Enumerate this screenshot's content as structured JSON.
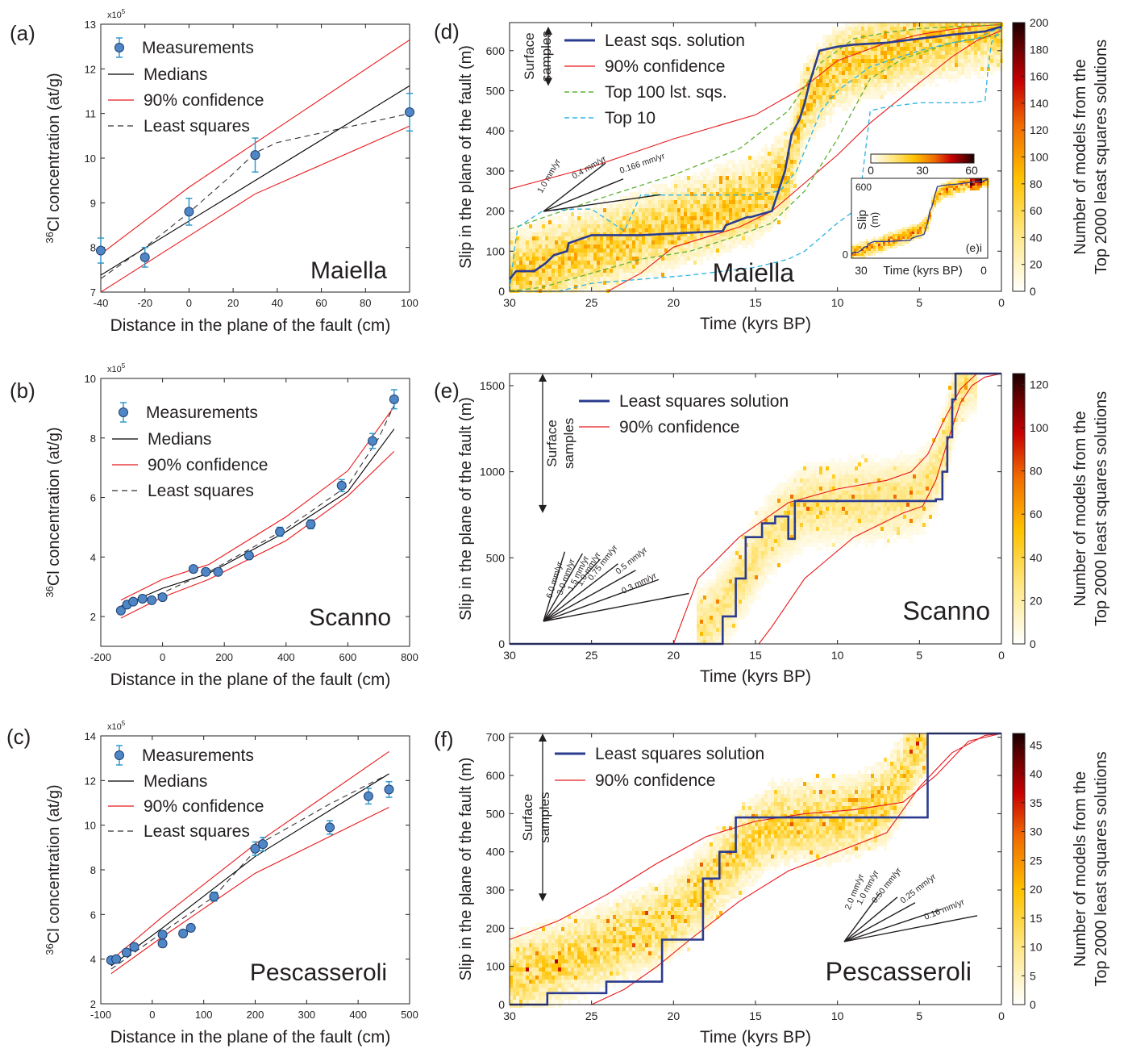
{
  "colors": {
    "measurement": "#4f86c6",
    "measurement_edge": "#1f3f6f",
    "errorbar": "#3399cc",
    "median": "#000000",
    "confidence": "#e8191c",
    "least_squares_line": "#2b3b8f",
    "top100": "#5fb132",
    "top10": "#2ab3e3"
  },
  "chart_data": [
    {
      "id": "a",
      "panel_label": "(a)",
      "type": "scatter",
      "site": "Maiella",
      "xlabel": "Distance in the plane of the fault (cm)",
      "ylabel": "36Cl concentration (at/g)",
      "y_multiplier": "x10",
      "y_multiplier_exp": "5",
      "xlim": [
        -40,
        100
      ],
      "ylim": [
        7,
        13
      ],
      "xticks": [
        -40,
        -20,
        0,
        20,
        40,
        60,
        80,
        100
      ],
      "yticks": [
        7,
        8,
        9,
        10,
        11,
        12,
        13
      ],
      "legend": [
        "Measurements",
        "Medians",
        "90% confidence",
        "Least squares"
      ],
      "legend_position": "top-left",
      "measurements": {
        "x": [
          -40,
          -20,
          0,
          30,
          100
        ],
        "y": [
          7.93,
          7.78,
          8.8,
          10.07,
          11.03
        ],
        "err": [
          0.28,
          0.22,
          0.3,
          0.38,
          0.42
        ]
      },
      "medians": {
        "x": [
          -40,
          100
        ],
        "y": [
          7.38,
          11.62
        ]
      },
      "conf_upper": {
        "x": [
          -40,
          0,
          100
        ],
        "y": [
          7.85,
          9.35,
          12.65
        ]
      },
      "conf_lower": {
        "x": [
          -40,
          30,
          100
        ],
        "y": [
          7.0,
          9.2,
          10.72
        ]
      },
      "least_squares": {
        "x": [
          -40,
          -20,
          0,
          20,
          30,
          40,
          100
        ],
        "y": [
          7.3,
          8.0,
          8.78,
          9.65,
          10.12,
          10.35,
          11.0
        ]
      }
    },
    {
      "id": "b",
      "panel_label": "(b)",
      "type": "scatter",
      "site": "Scanno",
      "xlabel": "Distance in the plane of the fault (cm)",
      "ylabel": "36Cl concentration (at/g)",
      "y_multiplier": "x10",
      "y_multiplier_exp": "5",
      "xlim": [
        -200,
        800
      ],
      "ylim": [
        1,
        10
      ],
      "xticks": [
        -200,
        0,
        200,
        400,
        600,
        800
      ],
      "yticks": [
        2,
        4,
        6,
        8,
        10
      ],
      "legend": [
        "Measurements",
        "Medians",
        "90% confidence",
        "Least squares"
      ],
      "legend_position": "top-left",
      "measurements": {
        "x": [
          -135,
          -115,
          -95,
          -65,
          -35,
          0,
          100,
          140,
          180,
          280,
          380,
          480,
          580,
          680,
          750
        ],
        "y": [
          2.2,
          2.4,
          2.5,
          2.6,
          2.55,
          2.65,
          3.6,
          3.5,
          3.5,
          4.05,
          4.85,
          5.1,
          6.4,
          7.9,
          9.3
        ],
        "err": [
          0.08,
          0.08,
          0.08,
          0.08,
          0.08,
          0.08,
          0.1,
          0.1,
          0.1,
          0.12,
          0.15,
          0.15,
          0.2,
          0.25,
          0.32
        ]
      },
      "medians": {
        "x": [
          -135,
          0,
          150,
          400,
          600,
          750
        ],
        "y": [
          2.35,
          2.95,
          3.45,
          4.85,
          6.2,
          8.3
        ]
      },
      "conf_upper": {
        "x": [
          -135,
          0,
          150,
          400,
          600,
          750
        ],
        "y": [
          2.55,
          3.25,
          3.75,
          5.35,
          6.9,
          9.05
        ]
      },
      "conf_lower": {
        "x": [
          -135,
          0,
          150,
          400,
          600,
          750
        ],
        "y": [
          1.95,
          2.65,
          3.25,
          4.55,
          6.05,
          7.55
        ]
      },
      "least_squares": {
        "x": [
          -135,
          -50,
          0,
          150,
          400,
          600,
          700,
          750
        ],
        "y": [
          2.3,
          2.6,
          2.8,
          3.5,
          4.95,
          6.4,
          8.0,
          9.1
        ]
      }
    },
    {
      "id": "c",
      "panel_label": "(c)",
      "type": "scatter",
      "site": "Pescasseroli",
      "xlabel": "Distance in the plane of the fault (cm)",
      "ylabel": "36Cl concentration (at/g)",
      "y_multiplier": "x10",
      "y_multiplier_exp": "5",
      "xlim": [
        -100,
        500
      ],
      "ylim": [
        2,
        14
      ],
      "xticks": [
        -100,
        0,
        100,
        200,
        300,
        400,
        500
      ],
      "yticks": [
        2,
        4,
        6,
        8,
        10,
        12,
        14
      ],
      "legend": [
        "Measurements",
        "Medians",
        "90% confidence",
        "Least squares"
      ],
      "legend_position": "top-left",
      "measurements": {
        "x": [
          -80,
          -70,
          -50,
          -35,
          20,
          20,
          60,
          75,
          120,
          200,
          215,
          345,
          420,
          460
        ],
        "y": [
          3.95,
          4.0,
          4.3,
          4.55,
          4.7,
          5.1,
          5.15,
          5.4,
          6.8,
          8.95,
          9.15,
          9.9,
          11.3,
          11.6
        ],
        "err": [
          0.1,
          0.1,
          0.1,
          0.12,
          0.15,
          0.15,
          0.15,
          0.15,
          0.2,
          0.3,
          0.3,
          0.3,
          0.35,
          0.35
        ]
      },
      "medians": {
        "x": [
          -80,
          20,
          200,
          460
        ],
        "y": [
          3.7,
          5.4,
          8.6,
          12.3
        ]
      },
      "conf_upper": {
        "x": [
          -80,
          20,
          200,
          460
        ],
        "y": [
          3.95,
          5.9,
          9.15,
          13.3
        ]
      },
      "conf_lower": {
        "x": [
          -80,
          20,
          200,
          460
        ],
        "y": [
          3.35,
          5.0,
          7.85,
          10.8
        ]
      },
      "least_squares": {
        "x": [
          -80,
          20,
          120,
          215,
          345,
          460
        ],
        "y": [
          3.55,
          5.2,
          6.8,
          9.25,
          10.95,
          12.3
        ]
      }
    },
    {
      "id": "d",
      "panel_label": "(d)",
      "type": "heatmap",
      "site": "Maiella",
      "xlabel": "Time (kyrs BP)",
      "ylabel": "Slip in the plane of the fault  (m)",
      "xlim": [
        30,
        0
      ],
      "ylim": [
        0,
        670
      ],
      "xticks": [
        30,
        25,
        20,
        15,
        10,
        5,
        0
      ],
      "yticks": [
        0,
        100,
        200,
        300,
        400,
        500,
        600
      ],
      "colorbar_label_lines": [
        "Number of models from the",
        "Top 2000 least squares solutions"
      ],
      "colorbar_range": [
        0,
        200
      ],
      "colorbar_ticks": [
        0,
        20,
        40,
        60,
        80,
        100,
        120,
        140,
        160,
        180,
        200
      ],
      "surface_samples": [
        "Surface",
        "samples"
      ],
      "surface_samples_range_m": [
        512,
        660
      ],
      "legend": [
        "Least sqs. solution",
        "90% confidence",
        "Top 100 lst. sqs.",
        "Top 10"
      ],
      "rate_labels": [
        "1.0 mm/yr",
        "0.4 mm/yr",
        "0.166 mm/yr"
      ],
      "inset": {
        "label": "(e)i",
        "ylabel": "Slip (m)",
        "xlabel": "Time (kyrs BP)",
        "ytick_top": "600",
        "ytick_bottom": "0",
        "xtick_left": "30",
        "xtick_right": "0",
        "colorbar_ticks": [
          "0",
          "30",
          "60"
        ]
      },
      "density_ridge": {
        "t": [
          30,
          25,
          20,
          15,
          13,
          12,
          10,
          7,
          3,
          0
        ],
        "slip": [
          40,
          100,
          165,
          230,
          300,
          470,
          560,
          600,
          640,
          660
        ]
      },
      "least_squares": {
        "t": [
          30,
          29.6,
          28.5,
          27.8,
          27.3,
          26.5,
          26.4,
          25,
          22,
          17,
          16.8,
          15.5,
          15.3,
          14,
          13.2,
          12.8,
          12.3,
          12,
          11.7,
          11.4,
          11.1,
          10,
          9,
          7,
          5,
          3,
          1,
          0
        ],
        "slip": [
          30,
          50,
          50,
          70,
          90,
          100,
          120,
          140,
          140,
          150,
          165,
          185,
          185,
          200,
          300,
          390,
          430,
          470,
          520,
          560,
          600,
          610,
          615,
          620,
          630,
          640,
          648,
          660
        ]
      },
      "conf_upper": {
        "t": [
          30,
          25,
          20,
          15,
          12,
          10,
          7,
          5,
          2,
          0
        ],
        "slip": [
          255,
          310,
          380,
          440,
          510,
          575,
          620,
          640,
          660,
          665
        ]
      },
      "conf_lower": {
        "t": [
          24,
          22,
          20,
          16,
          14,
          10,
          8,
          5,
          3,
          1.5,
          0
        ],
        "slip": [
          0,
          45,
          110,
          160,
          200,
          340,
          420,
          520,
          585,
          625,
          650
        ]
      },
      "top100_upper": {
        "t": [
          30,
          25,
          20,
          16,
          13,
          11,
          9,
          7,
          5,
          3,
          0
        ],
        "slip": [
          155,
          225,
          290,
          355,
          450,
          570,
          630,
          645,
          655,
          660,
          665
        ]
      },
      "top100_lower": {
        "t": [
          30,
          28,
          22,
          19,
          16,
          14,
          12,
          10,
          8,
          6,
          3,
          0
        ],
        "slip": [
          0,
          10,
          80,
          100,
          140,
          170,
          250,
          380,
          530,
          580,
          620,
          640
        ]
      },
      "top10_a": {
        "t": [
          30,
          29.7,
          29.5,
          28,
          26,
          25,
          23,
          22,
          15,
          13.5,
          12.5,
          12,
          11,
          10,
          8,
          5,
          3,
          1.5,
          1,
          0.5,
          0
        ],
        "slip": [
          0,
          105,
          160,
          200,
          205,
          205,
          150,
          240,
          240,
          250,
          300,
          350,
          450,
          500,
          560,
          600,
          620,
          630,
          640,
          650,
          660
        ]
      },
      "top10_b": {
        "t": [
          30,
          27,
          25,
          22,
          19,
          15,
          13,
          12,
          10,
          9,
          8.5,
          8,
          7,
          5,
          3,
          2,
          1,
          0.8,
          0.6,
          0.3,
          0
        ],
        "slip": [
          0,
          0,
          20,
          30,
          40,
          60,
          80,
          100,
          170,
          200,
          280,
          450,
          460,
          470,
          470,
          470,
          475,
          560,
          620,
          640,
          660
        ]
      }
    },
    {
      "id": "e",
      "panel_label": "(e)",
      "type": "heatmap",
      "site": "Scanno",
      "xlabel": "Time (kyrs BP)",
      "ylabel": "Slip in the plane of the fault  (m)",
      "xlim": [
        30,
        0
      ],
      "ylim": [
        0,
        1570
      ],
      "xticks": [
        30,
        25,
        20,
        15,
        10,
        5,
        0
      ],
      "yticks": [
        0,
        500,
        1000,
        1500
      ],
      "colorbar_label_lines": [
        "Number of models from the",
        "Top 2000 least squares solutions"
      ],
      "colorbar_range": [
        0,
        125
      ],
      "colorbar_ticks": [
        0,
        20,
        40,
        60,
        80,
        100,
        120
      ],
      "surface_samples": [
        "Surface",
        "samples"
      ],
      "surface_samples_range_m": [
        760,
        1570
      ],
      "legend": [
        "Least squares solution",
        "90% confidence"
      ],
      "rate_labels": [
        "6.0 mm/yr",
        "3.0 mm/yr",
        "1.5 mm/yr",
        "1.0 mm/yr",
        "0.75 mm/yr",
        "0.5 mm/yr",
        "0.3 mm/yr"
      ],
      "density_ridge": {
        "t": [
          18,
          16,
          14,
          12,
          10,
          7,
          5,
          4,
          3.3,
          2.8,
          2
        ],
        "slip": [
          100,
          350,
          650,
          800,
          820,
          840,
          870,
          1000,
          1200,
          1450,
          1570
        ]
      },
      "least_squares": {
        "t": [
          30,
          17,
          17,
          16.2,
          16.2,
          15.6,
          15.6,
          14.6,
          14.6,
          13.8,
          13.8,
          13,
          13,
          12.6,
          12.6,
          4,
          4,
          3.6,
          3.6,
          3.3,
          3.3,
          3,
          3,
          2.8,
          2.8,
          0
        ],
        "slip": [
          0,
          0,
          160,
          160,
          380,
          380,
          620,
          620,
          700,
          700,
          740,
          740,
          610,
          610,
          830,
          830,
          840,
          840,
          1000,
          1000,
          1200,
          1200,
          1420,
          1420,
          1570,
          1570
        ]
      },
      "conf_upper": {
        "t": [
          20,
          18.5,
          16,
          13,
          10,
          7,
          5.5,
          4.5,
          3.5,
          2.5,
          1.5,
          0.5
        ],
        "slip": [
          0,
          380,
          620,
          820,
          900,
          950,
          1000,
          1100,
          1300,
          1480,
          1570,
          1570
        ]
      },
      "conf_lower": {
        "t": [
          14.8,
          14,
          12,
          9,
          6,
          4.8,
          4,
          3.2,
          2.5,
          1.8,
          1,
          0
        ],
        "slip": [
          0,
          100,
          380,
          620,
          760,
          800,
          950,
          1200,
          1400,
          1500,
          1550,
          1570
        ]
      }
    },
    {
      "id": "f",
      "panel_label": "(f)",
      "type": "heatmap",
      "site": "Pescasseroli",
      "xlabel": "Time (kyrs BP)",
      "ylabel": "Slip in the plane of the fault  (m)",
      "xlim": [
        30,
        0
      ],
      "ylim": [
        0,
        710
      ],
      "xticks": [
        30,
        25,
        20,
        15,
        10,
        5,
        0
      ],
      "yticks": [
        0,
        100,
        200,
        300,
        400,
        500,
        600,
        700
      ],
      "colorbar_label_lines": [
        "Number of models from the",
        "Top 2000 least squares solutions"
      ],
      "colorbar_range": [
        0,
        47
      ],
      "colorbar_ticks": [
        0,
        5,
        10,
        15,
        20,
        25,
        30,
        35,
        40,
        45
      ],
      "surface_samples": [
        "Surface",
        "samples"
      ],
      "surface_samples_range_m": [
        270,
        710
      ],
      "legend": [
        "Least squares solution",
        "90% confidence"
      ],
      "rate_labels": [
        "2.0 mm/yr",
        "1.0 mm/yr",
        "0.50 mm/yr",
        "0.25 mm/yr",
        "0.16 mm/yr"
      ],
      "density_ridge": {
        "t": [
          30,
          27,
          23,
          20,
          18,
          16,
          14,
          12,
          9,
          7,
          5.5,
          5
        ],
        "slip": [
          70,
          110,
          170,
          230,
          310,
          400,
          470,
          480,
          490,
          530,
          640,
          700
        ]
      },
      "least_squares": {
        "t": [
          30,
          27.7,
          27.7,
          24.1,
          24.1,
          20.7,
          20.7,
          18.2,
          18.2,
          17.2,
          17.2,
          16.2,
          16.2,
          4.5,
          4.5,
          0
        ],
        "slip": [
          0,
          0,
          30,
          30,
          60,
          60,
          170,
          170,
          330,
          330,
          400,
          400,
          490,
          490,
          710,
          710
        ]
      },
      "conf_upper": {
        "t": [
          30,
          27,
          24,
          21,
          18,
          15,
          12,
          9,
          6,
          4,
          2,
          0
        ],
        "slip": [
          170,
          220,
          290,
          370,
          440,
          480,
          500,
          510,
          530,
          600,
          690,
          710
        ]
      },
      "conf_lower": {
        "t": [
          25,
          23,
          21,
          19,
          16,
          13,
          10,
          7,
          5,
          3,
          1,
          0
        ],
        "slip": [
          0,
          40,
          100,
          170,
          270,
          350,
          400,
          450,
          570,
          660,
          705,
          710
        ]
      }
    }
  ]
}
